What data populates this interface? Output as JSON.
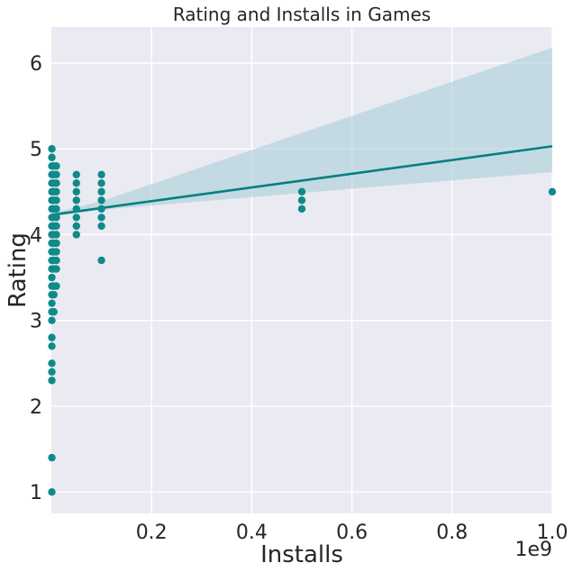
{
  "chart_data": {
    "type": "scatter",
    "title": "Rating and Installs in Games",
    "xlabel": "Installs",
    "ylabel": "Rating",
    "x_offset_label": "1e9",
    "xlim": [
      0,
      1000000000
    ],
    "ylim": [
      0.75,
      6.42
    ],
    "x_ticks": [
      200000000,
      400000000,
      600000000,
      800000000,
      1000000000
    ],
    "x_tick_labels": [
      "0.2",
      "0.4",
      "0.6",
      "0.8",
      "1.0"
    ],
    "y_ticks": [
      1,
      2,
      3,
      4,
      5,
      6
    ],
    "y_tick_labels": [
      "1",
      "2",
      "3",
      "4",
      "5",
      "6"
    ],
    "grid": true,
    "colors": {
      "background": "#EAEAF2",
      "grid": "#FFFFFF",
      "points": "#0F8A8A",
      "regression_line": "#008080",
      "confidence_band": "#A9CFD8"
    },
    "series": [
      {
        "points": [
          {
            "x": 1000000,
            "y": 5.0
          },
          {
            "x": 1000000,
            "y": 4.9
          },
          {
            "x": 1000000,
            "y": 4.8
          },
          {
            "x": 1000000,
            "y": 4.7
          },
          {
            "x": 1000000,
            "y": 4.6
          },
          {
            "x": 1000000,
            "y": 4.5
          },
          {
            "x": 1000000,
            "y": 4.4
          },
          {
            "x": 1000000,
            "y": 4.3
          },
          {
            "x": 1000000,
            "y": 4.2
          },
          {
            "x": 1000000,
            "y": 4.1
          },
          {
            "x": 1000000,
            "y": 4.0
          },
          {
            "x": 1000000,
            "y": 3.9
          },
          {
            "x": 1000000,
            "y": 3.8
          },
          {
            "x": 1000000,
            "y": 3.7
          },
          {
            "x": 1000000,
            "y": 3.6
          },
          {
            "x": 1000000,
            "y": 3.5
          },
          {
            "x": 1000000,
            "y": 3.4
          },
          {
            "x": 1000000,
            "y": 3.3
          },
          {
            "x": 1000000,
            "y": 3.2
          },
          {
            "x": 1000000,
            "y": 3.1
          },
          {
            "x": 1000000,
            "y": 3.0
          },
          {
            "x": 1000000,
            "y": 2.8
          },
          {
            "x": 1000000,
            "y": 2.7
          },
          {
            "x": 1000000,
            "y": 2.5
          },
          {
            "x": 1000000,
            "y": 2.4
          },
          {
            "x": 1000000,
            "y": 2.3
          },
          {
            "x": 1000000,
            "y": 1.4
          },
          {
            "x": 1000000,
            "y": 1.0
          },
          {
            "x": 5000000,
            "y": 4.8
          },
          {
            "x": 5000000,
            "y": 4.7
          },
          {
            "x": 5000000,
            "y": 4.6
          },
          {
            "x": 5000000,
            "y": 4.5
          },
          {
            "x": 5000000,
            "y": 4.4
          },
          {
            "x": 5000000,
            "y": 4.3
          },
          {
            "x": 5000000,
            "y": 4.2
          },
          {
            "x": 5000000,
            "y": 4.1
          },
          {
            "x": 5000000,
            "y": 4.0
          },
          {
            "x": 5000000,
            "y": 3.9
          },
          {
            "x": 5000000,
            "y": 3.8
          },
          {
            "x": 5000000,
            "y": 3.7
          },
          {
            "x": 5000000,
            "y": 3.6
          },
          {
            "x": 5000000,
            "y": 3.4
          },
          {
            "x": 5000000,
            "y": 3.3
          },
          {
            "x": 5000000,
            "y": 3.1
          },
          {
            "x": 10000000,
            "y": 4.8
          },
          {
            "x": 10000000,
            "y": 4.7
          },
          {
            "x": 10000000,
            "y": 4.6
          },
          {
            "x": 10000000,
            "y": 4.5
          },
          {
            "x": 10000000,
            "y": 4.4
          },
          {
            "x": 10000000,
            "y": 4.3
          },
          {
            "x": 10000000,
            "y": 4.2
          },
          {
            "x": 10000000,
            "y": 4.1
          },
          {
            "x": 10000000,
            "y": 4.0
          },
          {
            "x": 10000000,
            "y": 3.9
          },
          {
            "x": 10000000,
            "y": 3.8
          },
          {
            "x": 10000000,
            "y": 3.7
          },
          {
            "x": 10000000,
            "y": 3.6
          },
          {
            "x": 10000000,
            "y": 3.4
          },
          {
            "x": 50000000,
            "y": 4.7
          },
          {
            "x": 50000000,
            "y": 4.6
          },
          {
            "x": 50000000,
            "y": 4.5
          },
          {
            "x": 50000000,
            "y": 4.4
          },
          {
            "x": 50000000,
            "y": 4.3
          },
          {
            "x": 50000000,
            "y": 4.2
          },
          {
            "x": 50000000,
            "y": 4.1
          },
          {
            "x": 50000000,
            "y": 4.0
          },
          {
            "x": 100000000,
            "y": 4.7
          },
          {
            "x": 100000000,
            "y": 4.6
          },
          {
            "x": 100000000,
            "y": 4.5
          },
          {
            "x": 100000000,
            "y": 4.4
          },
          {
            "x": 100000000,
            "y": 4.3
          },
          {
            "x": 100000000,
            "y": 4.2
          },
          {
            "x": 100000000,
            "y": 4.1
          },
          {
            "x": 100000000,
            "y": 3.7
          },
          {
            "x": 500000000,
            "y": 4.5
          },
          {
            "x": 500000000,
            "y": 4.4
          },
          {
            "x": 500000000,
            "y": 4.3
          },
          {
            "x": 1000000000,
            "y": 4.5
          }
        ]
      }
    ],
    "regression": {
      "x": [
        0,
        1000000000
      ],
      "y": [
        4.23,
        5.03
      ]
    },
    "confidence_band": {
      "x": [
        0,
        100000000,
        1000000000
      ],
      "lower": [
        4.21,
        4.29,
        4.73
      ],
      "upper": [
        4.25,
        4.39,
        6.18
      ]
    }
  }
}
